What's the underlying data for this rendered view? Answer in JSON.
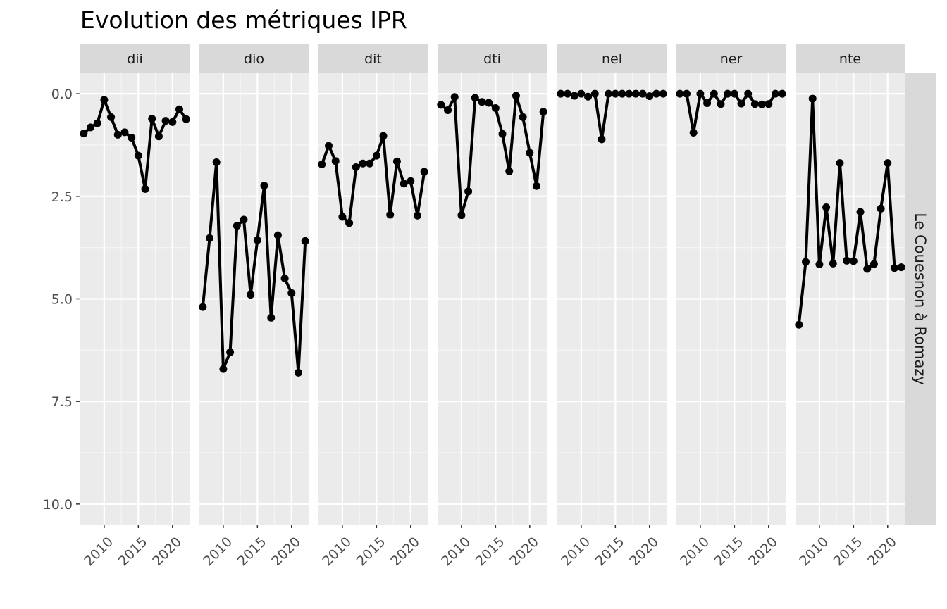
{
  "chart_data": {
    "type": "line",
    "title": "Evolution des métriques IPR",
    "facet_row_label": "Le Couesnon à Romazy",
    "y_axis_reversed": true,
    "ylim": [
      10.5,
      -0.5
    ],
    "xlim": [
      2006.5,
      2022.5
    ],
    "y_ticks": [
      0.0,
      2.5,
      5.0,
      7.5,
      10.0
    ],
    "y_tick_labels": [
      "0.0",
      "2.5",
      "5.0",
      "7.5",
      "10.0"
    ],
    "x_ticks": [
      2010,
      2015,
      2020
    ],
    "x_tick_labels": [
      "2010",
      "2015",
      "2020"
    ],
    "grid": true,
    "legend": "none",
    "colors": {
      "panel_bg": "#ebebeb",
      "strip_bg": "#d9d9d9",
      "grid_major": "#ffffff",
      "grid_minor": "#f5f5f5",
      "line": "#000000"
    },
    "x": [
      2007,
      2008,
      2009,
      2010,
      2011,
      2012,
      2013,
      2014,
      2015,
      2016,
      2017,
      2018,
      2019,
      2020,
      2021,
      2022
    ],
    "series": [
      {
        "name": "dii",
        "values": [
          0.97,
          0.82,
          0.72,
          0.15,
          0.57,
          1.0,
          0.94,
          1.07,
          1.51,
          2.32,
          0.61,
          1.04,
          0.66,
          0.69,
          0.38,
          0.62
        ]
      },
      {
        "name": "dio",
        "values": [
          5.2,
          3.52,
          1.67,
          6.71,
          6.3,
          3.22,
          3.07,
          4.9,
          3.57,
          2.24,
          5.46,
          3.45,
          4.5,
          4.86,
          6.8,
          3.59
        ]
      },
      {
        "name": "dit",
        "values": [
          1.72,
          1.27,
          1.64,
          3.0,
          3.15,
          1.79,
          1.7,
          1.7,
          1.51,
          1.03,
          2.95,
          1.65,
          2.19,
          2.13,
          2.97,
          1.9
        ]
      },
      {
        "name": "dti",
        "values": [
          0.27,
          0.4,
          0.08,
          2.96,
          2.38,
          0.1,
          0.2,
          0.22,
          0.35,
          0.98,
          1.89,
          0.05,
          0.57,
          1.44,
          2.25,
          0.44
        ]
      },
      {
        "name": "nel",
        "values": [
          0.0,
          0.0,
          0.05,
          0.0,
          0.07,
          0.0,
          1.11,
          0.0,
          0.0,
          0.0,
          0.0,
          0.0,
          0.0,
          0.06,
          0.0,
          0.0
        ]
      },
      {
        "name": "ner",
        "values": [
          0.0,
          0.0,
          0.95,
          0.0,
          0.23,
          0.0,
          0.25,
          0.0,
          0.0,
          0.24,
          0.0,
          0.25,
          0.26,
          0.25,
          0.0,
          0.0
        ]
      },
      {
        "name": "nte",
        "values": [
          5.63,
          4.1,
          0.12,
          4.16,
          2.77,
          4.14,
          1.69,
          4.07,
          4.08,
          2.88,
          4.27,
          4.15,
          2.8,
          1.69,
          4.25,
          4.23
        ]
      }
    ]
  }
}
